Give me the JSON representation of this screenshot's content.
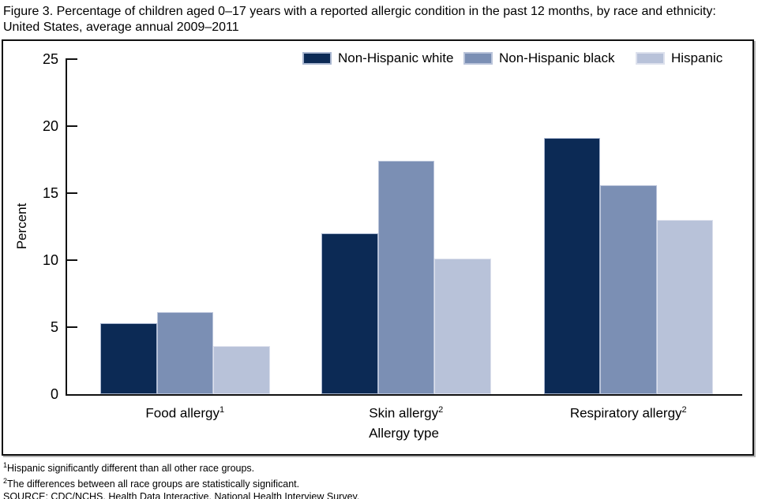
{
  "figure": {
    "title": "Figure 3. Percentage of children aged 0–17 years with a reported allergic condition in the past 12 months, by race and ethnicity: United States, average annual 2009–2011"
  },
  "chart_data": {
    "type": "bar",
    "title": "Percentage of children aged 0–17 years with a reported allergic condition in the past 12 months, by race and ethnicity: United States, average annual 2009–2011",
    "categories": [
      "Food allergy",
      "Skin allergy",
      "Respiratory allergy"
    ],
    "category_superscripts": [
      "1",
      "2",
      "2"
    ],
    "series": [
      {
        "name": "Non-Hispanic white",
        "color": "#0c2a55",
        "edge_color": "#a9b6d0",
        "values": [
          5.3,
          12.0,
          19.1
        ]
      },
      {
        "name": "Non-Hispanic black",
        "color": "#7b8fb4",
        "edge_color": "#bac4da",
        "values": [
          6.1,
          17.4,
          15.6
        ]
      },
      {
        "name": "Hispanic",
        "color": "#b8c2d9",
        "edge_color": "#dde1ed",
        "values": [
          3.6,
          10.1,
          13.0
        ]
      }
    ],
    "xlabel": "Allergy type",
    "ylabel": "Percent",
    "ylim": [
      0,
      25
    ],
    "yticks": [
      0,
      5,
      10,
      15,
      20,
      25
    ],
    "grid": false,
    "legend_position": "top"
  },
  "footnotes": [
    {
      "sup": "1",
      "text": "Hispanic significantly different than all other race groups."
    },
    {
      "sup": "2",
      "text": "The differences between all race groups are statistically significant."
    },
    {
      "sup": "",
      "text": "SOURCE: CDC/NCHS, Health Data Interactive, National Health Interview Survey."
    }
  ]
}
